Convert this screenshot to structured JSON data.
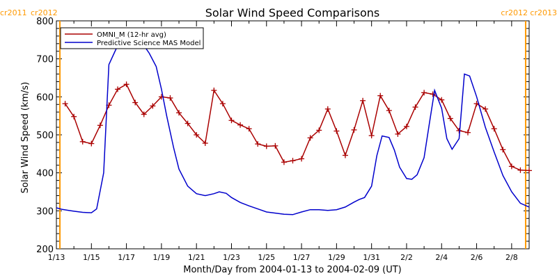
{
  "chart_data": {
    "type": "line",
    "title": "Solar Wind Speed Comparisons",
    "xlabel": "Month/Day from 2004-01-13 to 2004-02-09 (UT)",
    "ylabel": "Solar Wind Speed (km/s)",
    "ylim": [
      200,
      800
    ],
    "xlim": [
      0,
      27
    ],
    "yticks": [
      200,
      300,
      400,
      500,
      600,
      700,
      800
    ],
    "xticks": [
      {
        "x": 0,
        "label": "1/13"
      },
      {
        "x": 2,
        "label": "1/15"
      },
      {
        "x": 4,
        "label": "1/17"
      },
      {
        "x": 6,
        "label": "1/19"
      },
      {
        "x": 8,
        "label": "1/21"
      },
      {
        "x": 10,
        "label": "1/23"
      },
      {
        "x": 12,
        "label": "1/25"
      },
      {
        "x": 14,
        "label": "1/27"
      },
      {
        "x": 16,
        "label": "1/29"
      },
      {
        "x": 18,
        "label": "1/31"
      },
      {
        "x": 20,
        "label": "2/2"
      },
      {
        "x": 22,
        "label": "2/4"
      },
      {
        "x": 24,
        "label": "2/6"
      },
      {
        "x": 26,
        "label": "2/8"
      }
    ],
    "carrington_markers": [
      {
        "x": 0.2,
        "left_label": "cr2011",
        "right_label": "cr2012",
        "position": "left"
      },
      {
        "x": 26.8,
        "left_label": "cr2012",
        "right_label": "cr2013",
        "position": "right"
      }
    ],
    "legend_position": "top-left",
    "series": [
      {
        "name": "OMNI_M (12-hr avg)",
        "color": "#aa0000",
        "marker": "plus",
        "x": [
          0.5,
          1.0,
          1.5,
          2.0,
          2.5,
          3.0,
          3.5,
          4.0,
          4.5,
          5.0,
          5.5,
          6.0,
          6.5,
          7.0,
          7.5,
          8.0,
          8.5,
          9.0,
          9.5,
          10.0,
          10.5,
          11.0,
          11.5,
          12.0,
          12.5,
          13.0,
          13.5,
          14.0,
          14.5,
          15.0,
          15.5,
          16.0,
          16.5,
          17.0,
          17.5,
          18.0,
          18.5,
          19.0,
          19.5,
          20.0,
          20.5,
          21.0,
          21.5,
          22.0,
          22.5,
          23.0,
          23.5,
          24.0,
          24.5,
          25.0,
          25.5,
          26.0,
          26.5,
          27.0
        ],
        "values": [
          582,
          548,
          482,
          477,
          525,
          578,
          620,
          633,
          585,
          554,
          576,
          600,
          597,
          558,
          530,
          500,
          478,
          617,
          582,
          538,
          526,
          516,
          476,
          470,
          471,
          428,
          432,
          437,
          492,
          512,
          568,
          510,
          446,
          513,
          590,
          498,
          603,
          564,
          502,
          522,
          573,
          611,
          607,
          592,
          543,
          511,
          506,
          582,
          568,
          516,
          461,
          417,
          407,
          406
        ]
      },
      {
        "name": "Predictive Science MAS Model",
        "color": "#0000cc",
        "marker": "none",
        "x": [
          0,
          0.3,
          0.7,
          1.0,
          1.5,
          2.0,
          2.3,
          2.7,
          3.0,
          3.5,
          4.0,
          4.5,
          5.0,
          5.3,
          5.7,
          6.0,
          6.3,
          6.7,
          7.0,
          7.5,
          8.0,
          8.5,
          9.0,
          9.3,
          9.7,
          10.0,
          10.5,
          11.0,
          11.5,
          12.0,
          12.5,
          13.0,
          13.5,
          14.0,
          14.5,
          15.0,
          15.5,
          16.0,
          16.5,
          17.0,
          17.3,
          17.6,
          18.0,
          18.3,
          18.6,
          19.0,
          19.3,
          19.6,
          20.0,
          20.3,
          20.6,
          21.0,
          21.3,
          21.6,
          22.0,
          22.3,
          22.6,
          23.0,
          23.3,
          23.6,
          24.0,
          24.5,
          25.0,
          25.5,
          26.0,
          26.5,
          27.0
        ],
        "values": [
          308,
          304,
          301,
          299,
          296,
          295,
          305,
          400,
          685,
          735,
          745,
          747,
          735,
          715,
          680,
          620,
          550,
          465,
          410,
          365,
          345,
          340,
          345,
          350,
          346,
          335,
          322,
          313,
          305,
          297,
          294,
          291,
          290,
          297,
          303,
          303,
          301,
          303,
          310,
          323,
          330,
          335,
          365,
          445,
          497,
          493,
          460,
          415,
          385,
          383,
          395,
          440,
          530,
          617,
          570,
          490,
          462,
          490,
          660,
          655,
          600,
          520,
          455,
          393,
          350,
          320,
          310
        ]
      }
    ]
  }
}
